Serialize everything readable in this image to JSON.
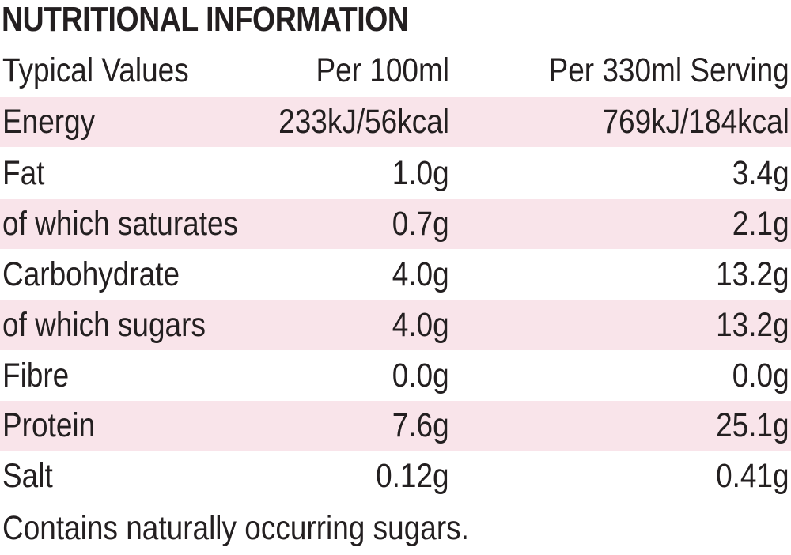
{
  "title": "NUTRITIONAL INFORMATION",
  "header": {
    "label": "Typical Values",
    "per_100": "Per 100ml",
    "per_serving": "Per 330ml Serving"
  },
  "rows": [
    {
      "name": "Energy",
      "per_100": "233kJ/56kcal",
      "per_serving": "769kJ/184kcal"
    },
    {
      "name": "Fat",
      "per_100": "1.0g",
      "per_serving": "3.4g"
    },
    {
      "name": "of which saturates",
      "per_100": "0.7g",
      "per_serving": "2.1g"
    },
    {
      "name": "Carbohydrate",
      "per_100": "4.0g",
      "per_serving": "13.2g"
    },
    {
      "name": "of which sugars",
      "per_100": "4.0g",
      "per_serving": "13.2g"
    },
    {
      "name": "Fibre",
      "per_100": "0.0g",
      "per_serving": "0.0g"
    },
    {
      "name": "Protein",
      "per_100": "7.6g",
      "per_serving": "25.1g"
    },
    {
      "name": "Salt",
      "per_100": "0.12g",
      "per_serving": "0.41g"
    }
  ],
  "footnote": "Contains naturally occurring sugars.",
  "colors": {
    "text": "#231f20",
    "row_shade": "#f9e4ea",
    "background": "#ffffff"
  }
}
